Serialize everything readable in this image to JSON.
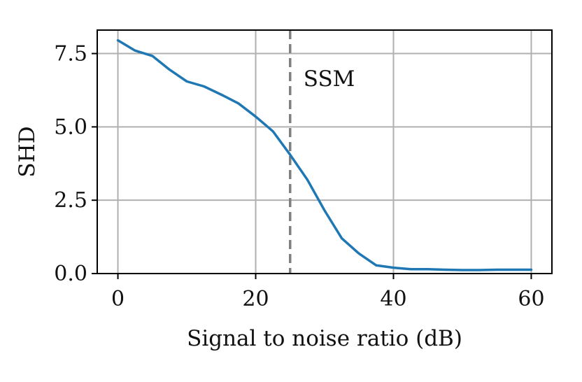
{
  "chart_data": {
    "type": "line",
    "xlabel": "Signal to noise ratio (dB)",
    "ylabel": "SHD",
    "xlim": [
      -3,
      63
    ],
    "ylim": [
      0,
      8.3
    ],
    "x_ticks": [
      0,
      20,
      40,
      60
    ],
    "y_ticks": [
      0.0,
      2.5,
      5.0,
      7.5
    ],
    "x_tick_labels": [
      "0",
      "20",
      "40",
      "60"
    ],
    "y_tick_labels": [
      "0.0",
      "2.5",
      "5.0",
      "7.5"
    ],
    "grid": true,
    "series": [
      {
        "color": "#1f77b4",
        "x": [
          0,
          2.5,
          5,
          7.5,
          10,
          12.5,
          15,
          17.5,
          20,
          22.5,
          25,
          27.5,
          30,
          32.5,
          35,
          37.5,
          40,
          42.5,
          45,
          47.5,
          50,
          52.5,
          55,
          57.5,
          60
        ],
        "y": [
          7.95,
          7.6,
          7.42,
          6.95,
          6.55,
          6.38,
          6.1,
          5.8,
          5.35,
          4.85,
          4.05,
          3.2,
          2.15,
          1.2,
          0.68,
          0.28,
          0.2,
          0.15,
          0.15,
          0.13,
          0.12,
          0.12,
          0.13,
          0.13,
          0.13
        ]
      }
    ],
    "annotations": [
      {
        "type": "vline",
        "x": 25,
        "label": "SSM",
        "color": "#808080",
        "style": "dashed"
      }
    ]
  }
}
